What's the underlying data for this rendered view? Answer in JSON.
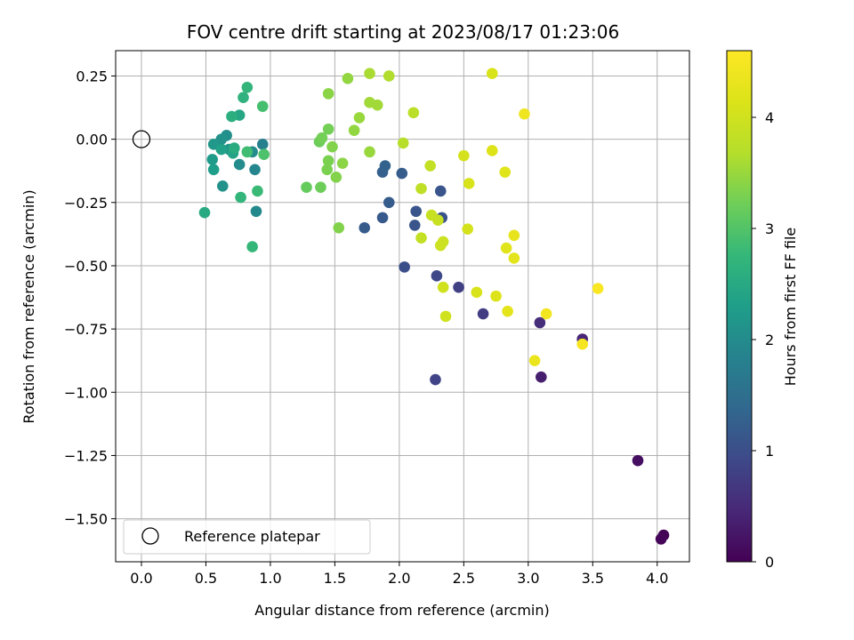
{
  "chart_data": {
    "type": "scatter",
    "title": "FOV centre drift starting at 2023/08/17 01:23:06",
    "xlabel": "Angular distance from reference (arcmin)",
    "ylabel": "Rotation from reference (arcmin)",
    "xlim": [
      -0.2,
      4.25
    ],
    "ylim": [
      -1.67,
      0.35
    ],
    "xticks": [
      0.0,
      0.5,
      1.0,
      1.5,
      2.0,
      2.5,
      3.0,
      3.5,
      4.0
    ],
    "xtick_labels": [
      "0.0",
      "0.5",
      "1.0",
      "1.5",
      "2.0",
      "2.5",
      "3.0",
      "3.5",
      "4.0"
    ],
    "yticks": [
      0.25,
      0.0,
      -0.25,
      -0.5,
      -0.75,
      -1.0,
      -1.25,
      -1.5
    ],
    "ytick_labels": [
      "0.25",
      "0.00",
      "−0.25",
      "−0.50",
      "−0.75",
      "−1.00",
      "−1.25",
      "−1.50"
    ],
    "grid": true,
    "legend": {
      "placement": "lower-left",
      "label": "Reference platepar"
    },
    "reference_point": {
      "x": 0.0,
      "y": 0.0
    },
    "colorbar": {
      "label": "Hours from first FF file",
      "colormap": "viridis",
      "range": [
        0,
        4.6
      ],
      "ticks": [
        0,
        1,
        2,
        3,
        4
      ],
      "tick_labels": [
        "0",
        "1",
        "2",
        "3",
        "4"
      ]
    },
    "points": [
      {
        "x": 4.05,
        "y": -1.565,
        "c": 0.03
      },
      {
        "x": 4.03,
        "y": -1.58,
        "c": 0.06
      },
      {
        "x": 3.85,
        "y": -1.27,
        "c": 0.15
      },
      {
        "x": 3.1,
        "y": -0.94,
        "c": 0.35
      },
      {
        "x": 3.42,
        "y": -0.79,
        "c": 0.45
      },
      {
        "x": 3.09,
        "y": -0.725,
        "c": 0.55
      },
      {
        "x": 2.65,
        "y": -0.69,
        "c": 0.75
      },
      {
        "x": 2.46,
        "y": -0.585,
        "c": 0.8
      },
      {
        "x": 2.28,
        "y": -0.95,
        "c": 0.85
      },
      {
        "x": 2.29,
        "y": -0.54,
        "c": 0.9
      },
      {
        "x": 2.04,
        "y": -0.505,
        "c": 1.0
      },
      {
        "x": 2.33,
        "y": -0.31,
        "c": 1.05
      },
      {
        "x": 2.12,
        "y": -0.34,
        "c": 1.1
      },
      {
        "x": 2.13,
        "y": -0.285,
        "c": 1.1
      },
      {
        "x": 1.87,
        "y": -0.31,
        "c": 1.15
      },
      {
        "x": 1.73,
        "y": -0.35,
        "c": 1.2
      },
      {
        "x": 1.92,
        "y": -0.25,
        "c": 1.2
      },
      {
        "x": 2.32,
        "y": -0.205,
        "c": 1.1
      },
      {
        "x": 2.02,
        "y": -0.135,
        "c": 1.2
      },
      {
        "x": 1.87,
        "y": -0.13,
        "c": 1.25
      },
      {
        "x": 1.89,
        "y": -0.105,
        "c": 1.3
      },
      {
        "x": 0.94,
        "y": -0.02,
        "c": 1.8
      },
      {
        "x": 0.88,
        "y": -0.12,
        "c": 1.9
      },
      {
        "x": 0.89,
        "y": -0.285,
        "c": 1.95
      },
      {
        "x": 0.86,
        "y": -0.05,
        "c": 2.0
      },
      {
        "x": 0.76,
        "y": -0.1,
        "c": 2.0
      },
      {
        "x": 0.63,
        "y": -0.185,
        "c": 2.1
      },
      {
        "x": 0.66,
        "y": 0.015,
        "c": 2.05
      },
      {
        "x": 0.62,
        "y": 0.0,
        "c": 2.1
      },
      {
        "x": 0.68,
        "y": -0.04,
        "c": 2.15
      },
      {
        "x": 0.56,
        "y": -0.02,
        "c": 2.2
      },
      {
        "x": 0.55,
        "y": -0.08,
        "c": 2.25
      },
      {
        "x": 0.56,
        "y": -0.12,
        "c": 2.3
      },
      {
        "x": 0.62,
        "y": -0.04,
        "c": 2.35
      },
      {
        "x": 0.71,
        "y": -0.055,
        "c": 2.4
      },
      {
        "x": 0.76,
        "y": 0.095,
        "c": 2.45
      },
      {
        "x": 0.49,
        "y": -0.29,
        "c": 2.5
      },
      {
        "x": 0.72,
        "y": -0.035,
        "c": 2.55
      },
      {
        "x": 0.7,
        "y": 0.09,
        "c": 2.6
      },
      {
        "x": 0.79,
        "y": 0.165,
        "c": 2.65
      },
      {
        "x": 0.82,
        "y": 0.205,
        "c": 2.7
      },
      {
        "x": 0.77,
        "y": -0.23,
        "c": 2.7
      },
      {
        "x": 0.86,
        "y": -0.425,
        "c": 2.75
      },
      {
        "x": 0.9,
        "y": -0.205,
        "c": 2.8
      },
      {
        "x": 0.82,
        "y": -0.05,
        "c": 2.85
      },
      {
        "x": 0.94,
        "y": 0.13,
        "c": 2.9
      },
      {
        "x": 0.95,
        "y": -0.06,
        "c": 2.95
      },
      {
        "x": 1.28,
        "y": -0.19,
        "c": 3.15
      },
      {
        "x": 1.39,
        "y": -0.19,
        "c": 3.2
      },
      {
        "x": 1.38,
        "y": -0.01,
        "c": 3.2
      },
      {
        "x": 1.4,
        "y": 0.005,
        "c": 3.25
      },
      {
        "x": 1.45,
        "y": 0.04,
        "c": 3.25
      },
      {
        "x": 1.44,
        "y": -0.12,
        "c": 3.3
      },
      {
        "x": 1.45,
        "y": -0.085,
        "c": 3.3
      },
      {
        "x": 1.48,
        "y": -0.03,
        "c": 3.35
      },
      {
        "x": 1.51,
        "y": -0.15,
        "c": 3.35
      },
      {
        "x": 1.53,
        "y": -0.35,
        "c": 3.35
      },
      {
        "x": 1.56,
        "y": -0.095,
        "c": 3.4
      },
      {
        "x": 1.45,
        "y": 0.18,
        "c": 3.4
      },
      {
        "x": 1.6,
        "y": 0.24,
        "c": 3.45
      },
      {
        "x": 1.65,
        "y": 0.035,
        "c": 3.45
      },
      {
        "x": 1.69,
        "y": 0.085,
        "c": 3.5
      },
      {
        "x": 1.77,
        "y": -0.05,
        "c": 3.5
      },
      {
        "x": 1.77,
        "y": 0.145,
        "c": 3.55
      },
      {
        "x": 1.83,
        "y": 0.135,
        "c": 3.55
      },
      {
        "x": 1.77,
        "y": 0.26,
        "c": 3.6
      },
      {
        "x": 1.92,
        "y": 0.25,
        "c": 3.65
      },
      {
        "x": 2.03,
        "y": -0.015,
        "c": 3.7
      },
      {
        "x": 2.11,
        "y": 0.105,
        "c": 3.75
      },
      {
        "x": 2.17,
        "y": -0.195,
        "c": 3.8
      },
      {
        "x": 2.17,
        "y": -0.39,
        "c": 3.85
      },
      {
        "x": 2.24,
        "y": -0.105,
        "c": 3.85
      },
      {
        "x": 2.25,
        "y": -0.3,
        "c": 3.9
      },
      {
        "x": 2.3,
        "y": -0.32,
        "c": 3.9
      },
      {
        "x": 2.32,
        "y": -0.42,
        "c": 3.95
      },
      {
        "x": 2.34,
        "y": -0.405,
        "c": 3.95
      },
      {
        "x": 2.34,
        "y": -0.585,
        "c": 4.0
      },
      {
        "x": 2.36,
        "y": -0.7,
        "c": 4.0
      },
      {
        "x": 2.5,
        "y": -0.065,
        "c": 4.05
      },
      {
        "x": 2.53,
        "y": -0.355,
        "c": 4.05
      },
      {
        "x": 2.54,
        "y": -0.175,
        "c": 4.1
      },
      {
        "x": 2.6,
        "y": -0.605,
        "c": 4.1
      },
      {
        "x": 2.72,
        "y": -0.045,
        "c": 4.15
      },
      {
        "x": 2.75,
        "y": -0.62,
        "c": 4.15
      },
      {
        "x": 2.82,
        "y": -0.13,
        "c": 4.2
      },
      {
        "x": 2.83,
        "y": -0.43,
        "c": 4.2
      },
      {
        "x": 2.84,
        "y": -0.68,
        "c": 4.25
      },
      {
        "x": 2.89,
        "y": -0.47,
        "c": 4.25
      },
      {
        "x": 2.89,
        "y": -0.38,
        "c": 4.3
      },
      {
        "x": 2.72,
        "y": 0.26,
        "c": 4.1
      },
      {
        "x": 3.05,
        "y": -0.875,
        "c": 4.35
      },
      {
        "x": 2.97,
        "y": 0.1,
        "c": 4.4
      },
      {
        "x": 3.14,
        "y": -0.69,
        "c": 4.45
      },
      {
        "x": 3.42,
        "y": -0.81,
        "c": 4.5
      },
      {
        "x": 3.54,
        "y": -0.59,
        "c": 4.55
      }
    ]
  }
}
